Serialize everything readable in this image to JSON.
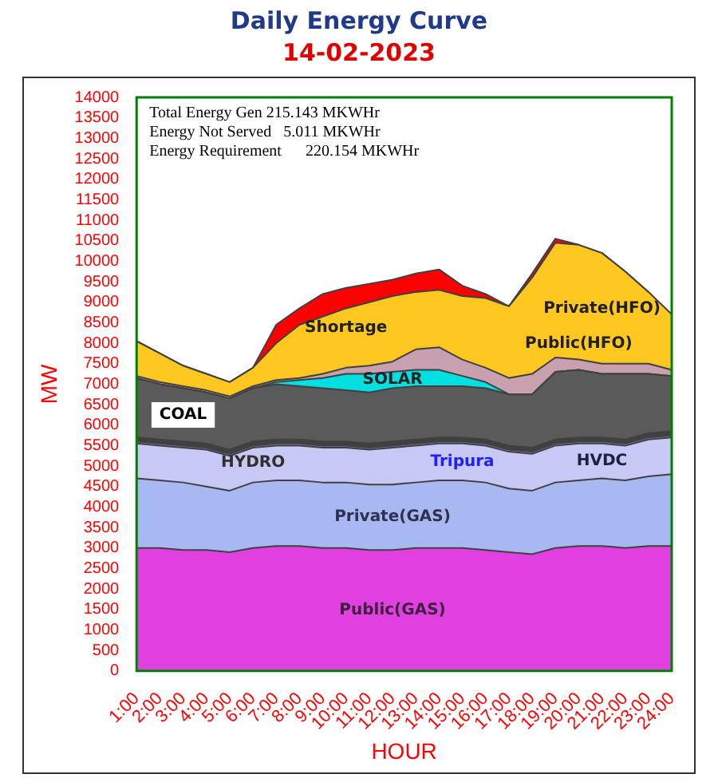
{
  "chart_data": {
    "type": "area",
    "title": "Daily Energy Curve",
    "subtitle": "14-02-2023",
    "xlabel": "HOUR",
    "ylabel": "MW",
    "annotations": [
      "Total Energy Gen 215.143 MKWHr",
      "Energy Not Served   5.011 MKWHr",
      "Energy Requirement      220.154 MKWHr"
    ],
    "categories": [
      "1:00",
      "2:00",
      "3:00",
      "4:00",
      "5:00",
      "6:00",
      "7:00",
      "8:00",
      "9:00",
      "10:00",
      "11:00",
      "12:00",
      "13:00",
      "14:00",
      "15:00",
      "16:00",
      "17:00",
      "18:00",
      "19:00",
      "20:00",
      "21:00",
      "22:00",
      "23:00",
      "24:00"
    ],
    "stacked": true,
    "legend": false,
    "grid": false,
    "ylim": [
      0,
      14000
    ],
    "yticks": [
      0,
      500,
      1000,
      1500,
      2000,
      2500,
      3000,
      3500,
      4000,
      4500,
      5000,
      5500,
      6000,
      6500,
      7000,
      7500,
      8000,
      8500,
      9000,
      9500,
      10000,
      10500,
      11000,
      11500,
      12000,
      12500,
      13000,
      13500,
      14000
    ],
    "series": [
      {
        "name": "Public(GAS)",
        "color": "#e040e0",
        "values": [
          3000,
          3000,
          2950,
          2950,
          2900,
          3000,
          3050,
          3050,
          3000,
          3000,
          2950,
          2950,
          3000,
          3000,
          3000,
          2950,
          2900,
          2850,
          3000,
          3050,
          3050,
          3000,
          3050,
          3050
        ]
      },
      {
        "name": "Private(GAS)",
        "color": "#a8b8f0",
        "values": [
          1700,
          1650,
          1650,
          1550,
          1500,
          1600,
          1600,
          1600,
          1600,
          1600,
          1600,
          1600,
          1600,
          1650,
          1650,
          1650,
          1550,
          1550,
          1600,
          1600,
          1650,
          1650,
          1700,
          1750
        ]
      },
      {
        "name": "HVDC",
        "color": "#c8c8f4",
        "values": [
          850,
          850,
          850,
          900,
          850,
          850,
          850,
          850,
          850,
          850,
          850,
          900,
          900,
          900,
          900,
          900,
          900,
          900,
          900,
          900,
          850,
          850,
          900,
          900
        ]
      },
      {
        "name": "Tripura",
        "color": "#8080c0",
        "values": [
          50,
          50,
          50,
          50,
          50,
          50,
          50,
          50,
          50,
          50,
          50,
          50,
          50,
          50,
          50,
          50,
          50,
          50,
          50,
          50,
          50,
          50,
          50,
          50
        ]
      },
      {
        "name": "HYDRO",
        "color": "#404040",
        "values": [
          100,
          100,
          100,
          100,
          100,
          100,
          100,
          100,
          100,
          100,
          100,
          100,
          100,
          100,
          100,
          100,
          100,
          100,
          100,
          100,
          100,
          100,
          100,
          100
        ]
      },
      {
        "name": "COAL",
        "color": "#5a5a5a",
        "values": [
          1450,
          1350,
          1300,
          1250,
          1250,
          1300,
          1350,
          1300,
          1300,
          1250,
          1250,
          1300,
          1300,
          1250,
          1250,
          1250,
          1250,
          1300,
          1650,
          1650,
          1550,
          1600,
          1450,
          1350
        ]
      },
      {
        "name": "SOLAR",
        "color": "#00e0e0",
        "values": [
          0,
          0,
          0,
          0,
          0,
          0,
          50,
          150,
          250,
          400,
          450,
          400,
          400,
          400,
          250,
          150,
          0,
          0,
          0,
          0,
          0,
          0,
          0,
          0
        ]
      },
      {
        "name": "Public(HFO)",
        "color": "#c8a0b0",
        "values": [
          50,
          50,
          50,
          50,
          50,
          50,
          50,
          50,
          100,
          150,
          200,
          250,
          500,
          550,
          400,
          350,
          400,
          500,
          350,
          250,
          250,
          250,
          250,
          150
        ]
      },
      {
        "name": "Private(HFO)",
        "color": "#ffc820",
        "values": [
          850,
          700,
          500,
          400,
          350,
          450,
          900,
          1300,
          1400,
          1450,
          1550,
          1600,
          1400,
          1400,
          1550,
          1700,
          1750,
          2350,
          2800,
          2800,
          2700,
          2250,
          1750,
          1350
        ]
      },
      {
        "name": "Shortage",
        "color": "#ff0000",
        "values": [
          0,
          0,
          0,
          0,
          0,
          0,
          450,
          400,
          550,
          500,
          450,
          400,
          450,
          500,
          250,
          100,
          0,
          100,
          100,
          0,
          0,
          0,
          0,
          0
        ]
      }
    ]
  }
}
